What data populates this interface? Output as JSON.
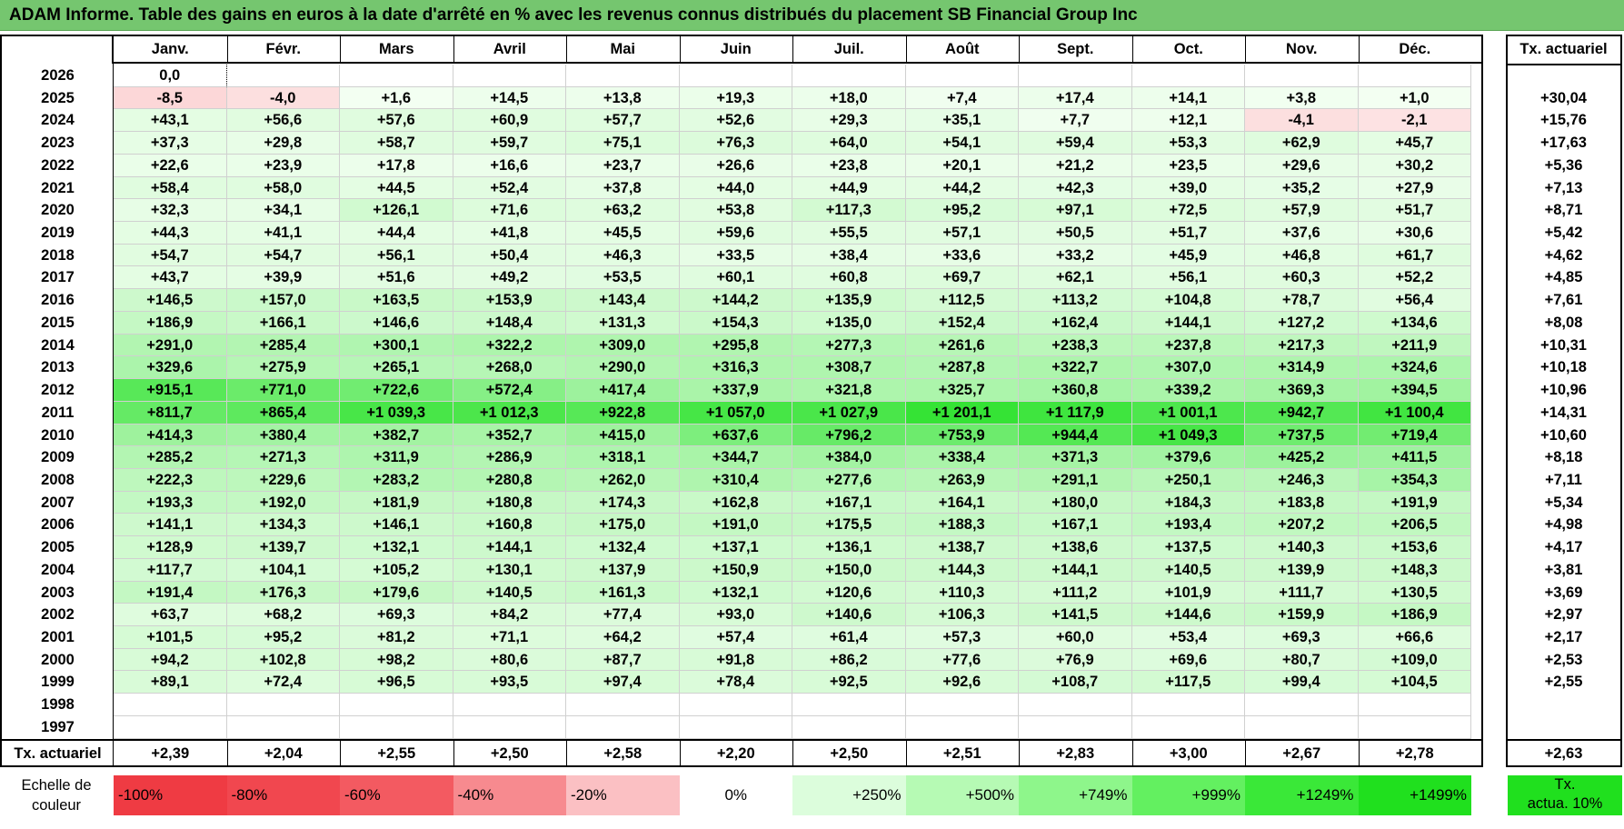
{
  "title": "ADAM Informe. Table des gains en euros à la date d'arrêté en % avec les revenus connus distribués du placement SB Financial Group Inc",
  "months": [
    "Janv.",
    "Févr.",
    "Mars",
    "Avril",
    "Mai",
    "Juin",
    "Juil.",
    "Août",
    "Sept.",
    "Oct.",
    "Nov.",
    "Déc."
  ],
  "annual_header": "Tx. actuariel",
  "rows": [
    {
      "year": "2026",
      "values": [
        "0,0",
        "",
        "",
        "",
        "",
        "",
        "",
        "",
        "",
        "",
        "",
        ""
      ],
      "annual": ""
    },
    {
      "year": "2025",
      "values": [
        "-8,5",
        "-4,0",
        "+1,6",
        "+14,5",
        "+13,8",
        "+19,3",
        "+18,0",
        "+7,4",
        "+17,4",
        "+14,1",
        "+3,8",
        "+1,0"
      ],
      "annual": "+30,04"
    },
    {
      "year": "2024",
      "values": [
        "+43,1",
        "+56,6",
        "+57,6",
        "+60,9",
        "+57,7",
        "+52,6",
        "+29,3",
        "+35,1",
        "+7,7",
        "+12,1",
        "-4,1",
        "-2,1"
      ],
      "annual": "+15,76"
    },
    {
      "year": "2023",
      "values": [
        "+37,3",
        "+29,8",
        "+58,7",
        "+59,7",
        "+75,1",
        "+76,3",
        "+64,0",
        "+54,1",
        "+59,4",
        "+53,3",
        "+62,9",
        "+45,7"
      ],
      "annual": "+17,63"
    },
    {
      "year": "2022",
      "values": [
        "+22,6",
        "+23,9",
        "+17,8",
        "+16,6",
        "+23,7",
        "+26,6",
        "+23,8",
        "+20,1",
        "+21,2",
        "+23,5",
        "+29,6",
        "+30,2"
      ],
      "annual": "+5,36"
    },
    {
      "year": "2021",
      "values": [
        "+58,4",
        "+58,0",
        "+44,5",
        "+52,4",
        "+37,8",
        "+44,0",
        "+44,9",
        "+44,2",
        "+42,3",
        "+39,0",
        "+35,2",
        "+27,9"
      ],
      "annual": "+7,13"
    },
    {
      "year": "2020",
      "values": [
        "+32,3",
        "+34,1",
        "+126,1",
        "+71,6",
        "+63,2",
        "+53,8",
        "+117,3",
        "+95,2",
        "+97,1",
        "+72,5",
        "+57,9",
        "+51,7"
      ],
      "annual": "+8,71"
    },
    {
      "year": "2019",
      "values": [
        "+44,3",
        "+41,1",
        "+44,4",
        "+41,8",
        "+45,5",
        "+59,6",
        "+55,5",
        "+57,1",
        "+50,5",
        "+51,7",
        "+37,6",
        "+30,6"
      ],
      "annual": "+5,42"
    },
    {
      "year": "2018",
      "values": [
        "+54,7",
        "+54,7",
        "+56,1",
        "+50,4",
        "+46,3",
        "+33,5",
        "+38,4",
        "+33,6",
        "+33,2",
        "+45,9",
        "+46,8",
        "+61,7"
      ],
      "annual": "+4,62"
    },
    {
      "year": "2017",
      "values": [
        "+43,7",
        "+39,9",
        "+51,6",
        "+49,2",
        "+53,5",
        "+60,1",
        "+60,8",
        "+69,7",
        "+62,1",
        "+56,1",
        "+60,3",
        "+52,2"
      ],
      "annual": "+4,85"
    },
    {
      "year": "2016",
      "values": [
        "+146,5",
        "+157,0",
        "+163,5",
        "+153,9",
        "+143,4",
        "+144,2",
        "+135,9",
        "+112,5",
        "+113,2",
        "+104,8",
        "+78,7",
        "+56,4"
      ],
      "annual": "+7,61"
    },
    {
      "year": "2015",
      "values": [
        "+186,9",
        "+166,1",
        "+146,6",
        "+148,4",
        "+131,3",
        "+154,3",
        "+135,0",
        "+152,4",
        "+162,4",
        "+144,1",
        "+127,2",
        "+134,6"
      ],
      "annual": "+8,08"
    },
    {
      "year": "2014",
      "values": [
        "+291,0",
        "+285,4",
        "+300,1",
        "+322,2",
        "+309,0",
        "+295,8",
        "+277,3",
        "+261,6",
        "+238,3",
        "+237,8",
        "+217,3",
        "+211,9"
      ],
      "annual": "+10,31"
    },
    {
      "year": "2013",
      "values": [
        "+329,6",
        "+275,9",
        "+265,1",
        "+268,0",
        "+290,0",
        "+316,3",
        "+308,7",
        "+287,8",
        "+322,7",
        "+307,0",
        "+314,9",
        "+324,6"
      ],
      "annual": "+10,18"
    },
    {
      "year": "2012",
      "values": [
        "+915,1",
        "+771,0",
        "+722,6",
        "+572,4",
        "+417,4",
        "+337,9",
        "+321,8",
        "+325,7",
        "+360,8",
        "+339,2",
        "+369,3",
        "+394,5"
      ],
      "annual": "+10,96"
    },
    {
      "year": "2011",
      "values": [
        "+811,7",
        "+865,4",
        "+1 039,3",
        "+1 012,3",
        "+922,8",
        "+1 057,0",
        "+1 027,9",
        "+1 201,1",
        "+1 117,9",
        "+1 001,1",
        "+942,7",
        "+1 100,4"
      ],
      "annual": "+14,31"
    },
    {
      "year": "2010",
      "values": [
        "+414,3",
        "+380,4",
        "+382,7",
        "+352,7",
        "+415,0",
        "+637,6",
        "+796,2",
        "+753,9",
        "+944,4",
        "+1 049,3",
        "+737,5",
        "+719,4"
      ],
      "annual": "+10,60"
    },
    {
      "year": "2009",
      "values": [
        "+285,2",
        "+271,3",
        "+311,9",
        "+286,9",
        "+318,1",
        "+344,7",
        "+384,0",
        "+338,4",
        "+371,3",
        "+379,6",
        "+425,2",
        "+411,5"
      ],
      "annual": "+8,18"
    },
    {
      "year": "2008",
      "values": [
        "+222,3",
        "+229,6",
        "+283,2",
        "+280,8",
        "+262,0",
        "+310,4",
        "+277,6",
        "+263,9",
        "+291,1",
        "+250,1",
        "+246,3",
        "+354,3"
      ],
      "annual": "+7,11"
    },
    {
      "year": "2007",
      "values": [
        "+193,3",
        "+192,0",
        "+181,9",
        "+180,8",
        "+174,3",
        "+162,8",
        "+167,1",
        "+164,1",
        "+180,0",
        "+184,3",
        "+183,8",
        "+191,9"
      ],
      "annual": "+5,34"
    },
    {
      "year": "2006",
      "values": [
        "+141,1",
        "+134,3",
        "+146,1",
        "+160,8",
        "+175,0",
        "+191,0",
        "+175,5",
        "+188,3",
        "+167,1",
        "+193,4",
        "+207,2",
        "+206,5"
      ],
      "annual": "+4,98"
    },
    {
      "year": "2005",
      "values": [
        "+128,9",
        "+139,7",
        "+132,1",
        "+144,1",
        "+132,4",
        "+137,1",
        "+136,1",
        "+138,7",
        "+138,6",
        "+137,5",
        "+140,3",
        "+153,6"
      ],
      "annual": "+4,17"
    },
    {
      "year": "2004",
      "values": [
        "+117,7",
        "+104,1",
        "+105,2",
        "+130,1",
        "+137,9",
        "+150,9",
        "+150,0",
        "+144,3",
        "+144,1",
        "+140,5",
        "+139,9",
        "+148,3"
      ],
      "annual": "+3,81"
    },
    {
      "year": "2003",
      "values": [
        "+191,4",
        "+176,3",
        "+179,6",
        "+140,5",
        "+161,3",
        "+132,1",
        "+120,6",
        "+110,3",
        "+111,2",
        "+101,9",
        "+111,7",
        "+130,5"
      ],
      "annual": "+3,69"
    },
    {
      "year": "2002",
      "values": [
        "+63,7",
        "+68,2",
        "+69,3",
        "+84,2",
        "+77,4",
        "+93,0",
        "+140,6",
        "+106,3",
        "+141,5",
        "+144,6",
        "+159,9",
        "+186,9"
      ],
      "annual": "+2,97"
    },
    {
      "year": "2001",
      "values": [
        "+101,5",
        "+95,2",
        "+81,2",
        "+71,1",
        "+64,2",
        "+57,4",
        "+61,4",
        "+57,3",
        "+60,0",
        "+53,4",
        "+69,3",
        "+66,6"
      ],
      "annual": "+2,17"
    },
    {
      "year": "2000",
      "values": [
        "+94,2",
        "+102,8",
        "+98,2",
        "+80,6",
        "+87,7",
        "+91,8",
        "+86,2",
        "+77,6",
        "+76,9",
        "+69,6",
        "+80,7",
        "+109,0"
      ],
      "annual": "+2,53"
    },
    {
      "year": "1999",
      "values": [
        "+89,1",
        "+72,4",
        "+96,5",
        "+93,5",
        "+97,4",
        "+78,4",
        "+92,5",
        "+92,6",
        "+108,7",
        "+117,5",
        "+99,4",
        "+104,5"
      ],
      "annual": "+2,55"
    },
    {
      "year": "1998",
      "values": [
        "",
        "",
        "",
        "",
        "",
        "",
        "",
        "",
        "",
        "",
        "",
        ""
      ],
      "annual": ""
    },
    {
      "year": "1997",
      "values": [
        "",
        "",
        "",
        "",
        "",
        "",
        "",
        "",
        "",
        "",
        "",
        ""
      ],
      "annual": ""
    }
  ],
  "footer": {
    "label": "Tx. actuariel",
    "values": [
      "+2,39",
      "+2,04",
      "+2,55",
      "+2,50",
      "+2,58",
      "+2,20",
      "+2,50",
      "+2,51",
      "+2,83",
      "+3,00",
      "+2,67",
      "+2,78"
    ],
    "annual": "+2,63"
  },
  "scale": {
    "label_line1": "Echelle de",
    "label_line2": "couleur",
    "items": [
      {
        "text": "-100%",
        "color": "#ef3b43",
        "align": "left"
      },
      {
        "text": "-80%",
        "color": "#f1474f",
        "align": "left"
      },
      {
        "text": "-60%",
        "color": "#f35a61",
        "align": "left"
      },
      {
        "text": "-40%",
        "color": "#f78a8f",
        "align": "left"
      },
      {
        "text": "-20%",
        "color": "#fbc0c3",
        "align": "left"
      },
      {
        "text": "0%",
        "color": "#ffffff",
        "align": "center"
      },
      {
        "text": "+250%",
        "color": "#dcfddc",
        "align": "right"
      },
      {
        "text": "+500%",
        "color": "#b6fab4",
        "align": "right"
      },
      {
        "text": "+749%",
        "color": "#8ef68b",
        "align": "right"
      },
      {
        "text": "+999%",
        "color": "#63f060",
        "align": "right"
      },
      {
        "text": "+1249%",
        "color": "#3ae838",
        "align": "right"
      },
      {
        "text": "+1499%",
        "color": "#20e01e",
        "align": "right"
      }
    ],
    "annual_line1": "Tx.",
    "annual_line2": "actua. 10%",
    "annual_color": "#20e01e"
  }
}
